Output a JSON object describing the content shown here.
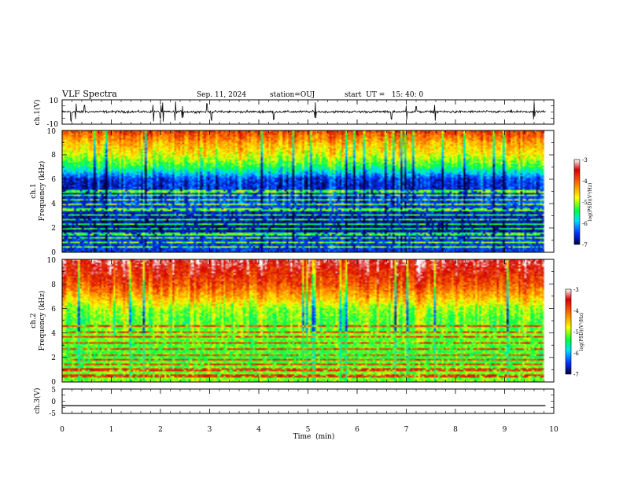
{
  "header": {
    "title": "VLF Spectra",
    "date": "Sep. 11, 2024",
    "station": "station=OUJ",
    "start": "start  UT =   15: 40: 0"
  },
  "chart_data": [
    {
      "type": "line",
      "ylabel": "ch.1(V)",
      "ylim": [
        -10,
        10
      ],
      "yticks": [
        "10",
        "-10"
      ],
      "xlim": [
        0,
        10
      ],
      "baseline": 0.2,
      "noise": 1.4,
      "spike_times": [
        0.18,
        0.28,
        0.45,
        1.85,
        2.0,
        2.05,
        2.3,
        2.45,
        2.95,
        3.03,
        4.3,
        5.15,
        6.7,
        7.0,
        7.2,
        7.58,
        9.6
      ],
      "spike_amp": 8
    },
    {
      "type": "heatmap",
      "ylabel": "ch.1\nFrequency  (kHz)",
      "xlim": [
        0,
        10
      ],
      "ylim": [
        0,
        10
      ],
      "yticks": [
        "0",
        "2",
        "4",
        "6",
        "8",
        "10"
      ],
      "colorbar": {
        "label": "log(PSD)(V²/Hz)",
        "range": [
          -7,
          -3
        ],
        "ticks": [
          "-3",
          "-4",
          "-5",
          "-6",
          "-7"
        ]
      },
      "band_mean": [
        -3.8,
        -4.4,
        -4.8,
        -5.4,
        -6.5,
        -6.6,
        -6.4,
        -6.7,
        -6.8,
        -6.5
      ],
      "lines_khz": [
        0.4,
        0.8,
        1.15,
        1.5,
        1.9,
        2.3,
        2.7,
        3.1,
        3.5,
        3.9,
        4.3,
        4.7,
        5.0
      ],
      "cutoff_min": 9.83
    },
    {
      "type": "heatmap",
      "ylabel": "ch.2\nFrequency  (kHz)",
      "xlim": [
        0,
        10
      ],
      "ylim": [
        0,
        10
      ],
      "yticks": [
        "0",
        "2",
        "4",
        "6",
        "8",
        "10"
      ],
      "colorbar": {
        "label": "log(PSD)(V²/Hz)",
        "range": [
          -7,
          -3
        ],
        "ticks": [
          "-3",
          "-4",
          "-5",
          "-6",
          "-7"
        ]
      },
      "band_mean": [
        -3.3,
        -3.6,
        -3.9,
        -4.4,
        -5.0,
        -5.2,
        -5.1,
        -5.2,
        -5.3,
        -5.1
      ],
      "lines_khz": [
        0.5,
        1.0,
        1.4,
        1.8,
        2.2,
        2.7,
        3.2,
        3.7,
        4.1,
        4.6
      ],
      "cutoff_min": 9.83
    },
    {
      "type": "line",
      "ylabel": "ch.3(V)",
      "ylim": [
        -5,
        5
      ],
      "yticks": [
        "5",
        "0",
        "-5"
      ],
      "xlim": [
        0,
        10
      ],
      "baseline": -1.8,
      "noise": 0,
      "xlabel": "Time  (min)",
      "xticks": [
        "0",
        "1",
        "2",
        "3",
        "4",
        "5",
        "6",
        "7",
        "8",
        "9",
        "10"
      ]
    }
  ]
}
